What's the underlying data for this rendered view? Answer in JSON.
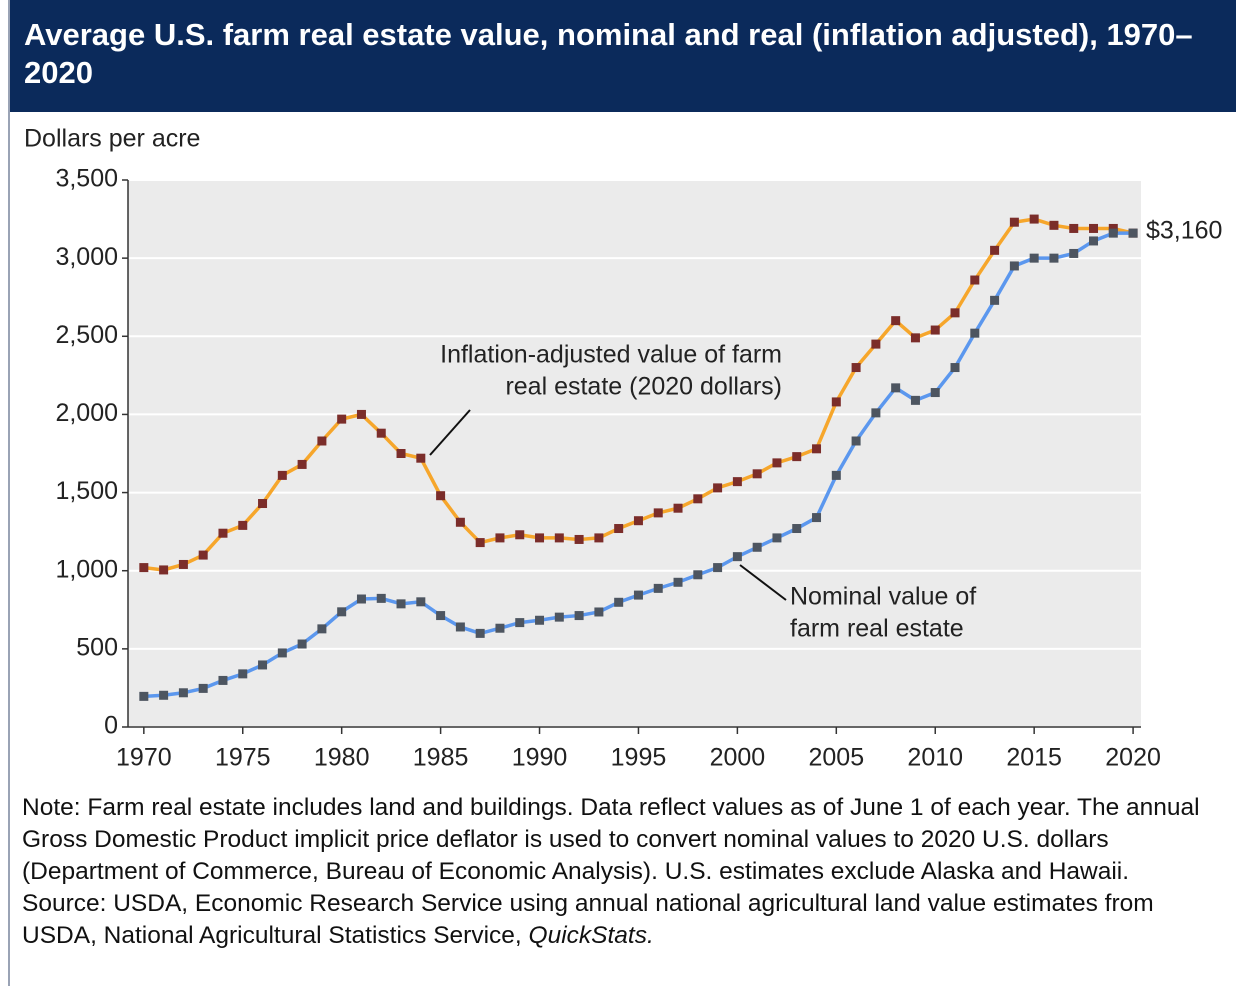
{
  "chart_data": {
    "type": "line",
    "title": "Average U.S. farm real estate value, nominal and real (inflation adjusted), 1970–2020",
    "ylabel": "Dollars per acre",
    "x": [
      1970,
      1971,
      1972,
      1973,
      1974,
      1975,
      1976,
      1977,
      1978,
      1979,
      1980,
      1981,
      1982,
      1983,
      1984,
      1985,
      1986,
      1987,
      1988,
      1989,
      1990,
      1991,
      1992,
      1993,
      1994,
      1995,
      1996,
      1997,
      1998,
      1999,
      2000,
      2001,
      2002,
      2003,
      2004,
      2005,
      2006,
      2007,
      2008,
      2009,
      2010,
      2011,
      2012,
      2013,
      2014,
      2015,
      2016,
      2017,
      2018,
      2019,
      2020
    ],
    "series": [
      {
        "name": "Inflation-adjusted value of farm real estate (2020 dollars)",
        "color": "#f6a62b",
        "marker_color": "#7b2d2a",
        "values": [
          1020,
          1005,
          1040,
          1100,
          1240,
          1290,
          1430,
          1610,
          1680,
          1830,
          1970,
          2000,
          1880,
          1750,
          1720,
          1480,
          1310,
          1180,
          1210,
          1230,
          1210,
          1210,
          1200,
          1210,
          1270,
          1320,
          1370,
          1400,
          1460,
          1530,
          1570,
          1620,
          1690,
          1730,
          1780,
          2080,
          2300,
          2450,
          2600,
          2490,
          2540,
          2650,
          2860,
          3050,
          3230,
          3250,
          3210,
          3190,
          3190,
          3190,
          3160
        ]
      },
      {
        "name": "Nominal value of farm real estate",
        "color": "#5b97ee",
        "marker_color": "#4d5560",
        "values": [
          196,
          203,
          219,
          247,
          298,
          340,
          397,
          474,
          531,
          628,
          737,
          819,
          823,
          788,
          801,
          713,
          640,
          599,
          632,
          668,
          683,
          703,
          713,
          736,
          798,
          844,
          887,
          926,
          974,
          1020,
          1090,
          1150,
          1210,
          1270,
          1340,
          1610,
          1830,
          2010,
          2170,
          2090,
          2140,
          2300,
          2520,
          2730,
          2950,
          3000,
          3000,
          3030,
          3110,
          3160,
          3160
        ]
      }
    ],
    "xlim": [
      1969.2,
      2020.4
    ],
    "xticks": [
      1970,
      1975,
      1980,
      1985,
      1990,
      1995,
      2000,
      2005,
      2010,
      2015,
      2020
    ],
    "ylim": [
      0,
      3500
    ],
    "yticks": [
      0,
      {
        "value": 500,
        "label": "500"
      },
      {
        "value": 1000,
        "label": "1,000"
      },
      {
        "value": 1500,
        "label": "1,500"
      },
      {
        "value": 2000,
        "label": "2,000"
      },
      {
        "value": 2500,
        "label": "2,500"
      },
      {
        "value": 3000,
        "label": "3,000"
      },
      {
        "value": 3500,
        "label": "3,500"
      }
    ],
    "grid": true,
    "annotations": [
      {
        "lines": [
          "Inflation-adjusted value of farm",
          "real estate (2020 dollars)"
        ]
      },
      {
        "lines": [
          "Nominal value of",
          "farm real estate"
        ]
      },
      {
        "text": "$3,160"
      }
    ],
    "note": "Note: Farm real estate includes land and buildings. Data reflect values as of June 1 of each year. The annual Gross Domestic Product implicit price deflator is used to convert nominal values to 2020 U.S. dollars (Department of Commerce, Bureau of Economic Analysis). U.S. estimates exclude Alaska and Hawaii.",
    "source": "Source: USDA, Economic Research Service using annual national agricultural land value estimates from USDA, National Agricultural Statistics Service,",
    "source_italic": "QuickStats."
  }
}
